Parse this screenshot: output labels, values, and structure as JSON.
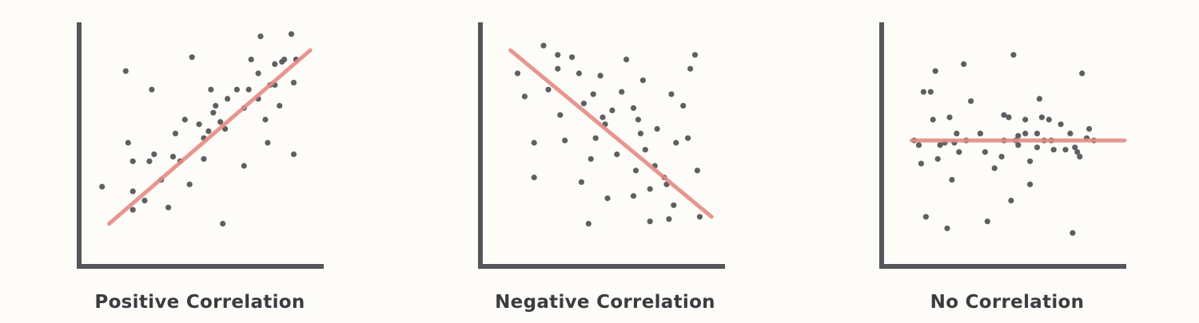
{
  "colors": {
    "background": "#fdfcf9",
    "axis": "#55565a",
    "point": "#5f5f63",
    "trend": "#e58c84",
    "caption": "#3b3c3f"
  },
  "chart_data": [
    {
      "type": "scatter",
      "title": "Positive Correlation",
      "xlim": [
        0,
        100
      ],
      "ylim": [
        0,
        100
      ],
      "axis_ticks": false,
      "grid": false,
      "trend_line": [
        [
          10,
          15
        ],
        [
          95,
          90
        ]
      ],
      "points": [
        [
          7,
          31
        ],
        [
          17,
          81
        ],
        [
          18,
          50
        ],
        [
          20,
          42
        ],
        [
          20,
          29
        ],
        [
          20,
          21
        ],
        [
          25,
          25
        ],
        [
          27,
          42
        ],
        [
          28,
          73
        ],
        [
          29,
          45
        ],
        [
          32,
          34
        ],
        [
          35,
          22
        ],
        [
          37,
          44
        ],
        [
          38,
          54
        ],
        [
          40,
          42
        ],
        [
          42,
          60
        ],
        [
          44,
          32
        ],
        [
          45,
          87
        ],
        [
          48,
          58
        ],
        [
          50,
          43
        ],
        [
          50,
          52
        ],
        [
          52,
          55
        ],
        [
          53,
          73
        ],
        [
          54,
          63
        ],
        [
          55,
          66
        ],
        [
          57,
          59
        ],
        [
          58,
          15
        ],
        [
          59,
          56
        ],
        [
          60,
          69
        ],
        [
          64,
          73
        ],
        [
          67,
          40
        ],
        [
          67,
          65
        ],
        [
          69,
          73
        ],
        [
          70,
          86
        ],
        [
          73,
          69
        ],
        [
          73,
          80
        ],
        [
          74,
          96
        ],
        [
          76,
          60
        ],
        [
          77,
          50
        ],
        [
          78,
          75
        ],
        [
          80,
          84
        ],
        [
          80,
          75
        ],
        [
          82,
          66
        ],
        [
          83,
          85
        ],
        [
          84,
          86
        ],
        [
          87,
          97
        ],
        [
          88,
          45
        ],
        [
          88,
          76
        ],
        [
          89,
          86
        ]
      ]
    },
    {
      "type": "scatter",
      "title": "Negative Correlation",
      "xlim": [
        0,
        100
      ],
      "ylim": [
        0,
        100
      ],
      "axis_ticks": false,
      "grid": false,
      "trend_line": [
        [
          10,
          90
        ],
        [
          95,
          18
        ]
      ],
      "points": [
        [
          13,
          80
        ],
        [
          16,
          70
        ],
        [
          20,
          50
        ],
        [
          20,
          35
        ],
        [
          24,
          92
        ],
        [
          26,
          73
        ],
        [
          30,
          88
        ],
        [
          30,
          82
        ],
        [
          31,
          62
        ],
        [
          33,
          51
        ],
        [
          36,
          87
        ],
        [
          39,
          80
        ],
        [
          40,
          33
        ],
        [
          41,
          67
        ],
        [
          43,
          15
        ],
        [
          44,
          43
        ],
        [
          45,
          71
        ],
        [
          46,
          52
        ],
        [
          48,
          79
        ],
        [
          49,
          61
        ],
        [
          50,
          58
        ],
        [
          51,
          26
        ],
        [
          53,
          64
        ],
        [
          55,
          45
        ],
        [
          57,
          72
        ],
        [
          59,
          86
        ],
        [
          62,
          65
        ],
        [
          62,
          27
        ],
        [
          63,
          38
        ],
        [
          64,
          60
        ],
        [
          65,
          54
        ],
        [
          66,
          77
        ],
        [
          67,
          47
        ],
        [
          69,
          30
        ],
        [
          69,
          16
        ],
        [
          71,
          40
        ],
        [
          72,
          56
        ],
        [
          75,
          35
        ],
        [
          76,
          32
        ],
        [
          77,
          17
        ],
        [
          78,
          71
        ],
        [
          79,
          23
        ],
        [
          80,
          50
        ],
        [
          83,
          66
        ],
        [
          85,
          52
        ],
        [
          86,
          82
        ],
        [
          88,
          88
        ],
        [
          89,
          38
        ],
        [
          90,
          18
        ]
      ]
    },
    {
      "type": "scatter",
      "title": "No Correlation",
      "xlim": [
        0,
        100
      ],
      "ylim": [
        0,
        100
      ],
      "axis_ticks": false,
      "grid": false,
      "trend_line": [
        [
          10,
          51
        ],
        [
          100,
          51
        ]
      ],
      "points": [
        [
          11,
          51
        ],
        [
          13,
          49
        ],
        [
          14,
          41
        ],
        [
          15,
          72
        ],
        [
          16,
          18
        ],
        [
          18,
          72
        ],
        [
          19,
          60
        ],
        [
          20,
          81
        ],
        [
          21,
          43
        ],
        [
          22,
          49
        ],
        [
          24,
          50
        ],
        [
          25,
          13
        ],
        [
          26,
          61
        ],
        [
          27,
          34
        ],
        [
          28,
          50
        ],
        [
          29,
          54
        ],
        [
          30,
          46
        ],
        [
          32,
          84
        ],
        [
          33,
          51
        ],
        [
          35,
          68
        ],
        [
          39,
          54
        ],
        [
          41,
          46
        ],
        [
          42,
          16
        ],
        [
          45,
          39
        ],
        [
          48,
          44
        ],
        [
          49,
          62
        ],
        [
          49,
          51
        ],
        [
          51,
          61
        ],
        [
          52,
          25
        ],
        [
          53,
          88
        ],
        [
          54,
          51
        ],
        [
          55,
          49
        ],
        [
          55,
          53
        ],
        [
          58,
          54
        ],
        [
          58,
          60
        ],
        [
          60,
          42
        ],
        [
          60,
          32
        ],
        [
          63,
          54
        ],
        [
          63,
          48
        ],
        [
          64,
          69
        ],
        [
          65,
          61
        ],
        [
          66,
          51
        ],
        [
          68,
          60
        ],
        [
          69,
          51
        ],
        [
          70,
          47
        ],
        [
          73,
          58
        ],
        [
          75,
          47
        ],
        [
          77,
          54
        ],
        [
          78,
          11
        ],
        [
          79,
          48
        ],
        [
          80,
          46
        ],
        [
          81,
          44
        ],
        [
          82,
          80
        ],
        [
          84,
          52
        ],
        [
          85,
          56
        ],
        [
          87,
          51
        ]
      ]
    }
  ]
}
